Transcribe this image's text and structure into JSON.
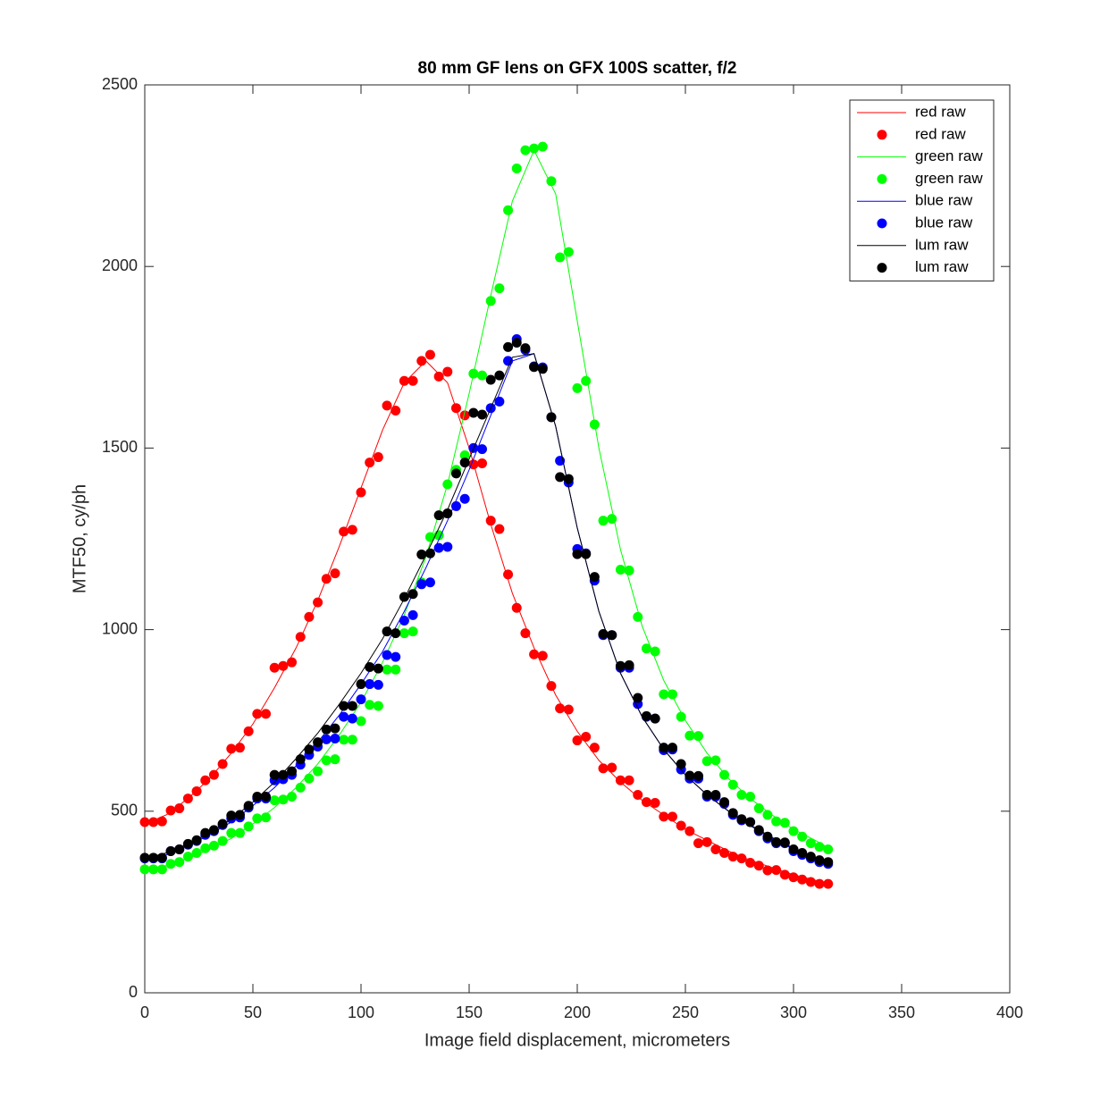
{
  "chart_data": {
    "type": "scatter",
    "title": "80 mm GF lens on GFX 100S scatter, f/2",
    "x_label": "Image field displacement, micrometers",
    "y_label": "MTF50, cy/ph",
    "xlim": [
      0,
      400
    ],
    "xticks": [
      0,
      50,
      100,
      150,
      200,
      250,
      300,
      350,
      400
    ],
    "ylim": [
      0,
      2500
    ],
    "yticks": [
      0,
      500,
      1000,
      1500,
      2000,
      2500
    ],
    "legend": "top-right",
    "series": [
      {
        "name": "red raw",
        "mode": "line",
        "color": "#ff0000",
        "x": [
          0,
          10,
          20,
          30,
          40,
          50,
          60,
          70,
          80,
          90,
          100,
          110,
          120,
          130,
          140,
          150,
          160,
          170,
          180,
          190,
          200,
          210,
          220,
          230,
          240,
          250,
          260,
          270,
          280,
          290,
          300,
          310,
          316
        ],
        "values": [
          465,
          490,
          535,
          590,
          660,
          740,
          840,
          950,
          1080,
          1230,
          1390,
          1550,
          1680,
          1740,
          1680,
          1500,
          1290,
          1100,
          950,
          820,
          720,
          640,
          580,
          530,
          490,
          450,
          420,
          390,
          365,
          345,
          325,
          310,
          302
        ]
      },
      {
        "name": "red raw",
        "mode": "markers",
        "color": "#ff0000",
        "x": [
          0,
          4,
          8,
          12,
          16,
          20,
          24,
          28,
          32,
          36,
          40,
          44,
          48,
          52,
          56,
          60,
          64,
          68,
          72,
          76,
          80,
          84,
          88,
          92,
          96,
          100,
          104,
          108,
          112,
          116,
          120,
          124,
          128,
          132,
          136,
          140,
          144,
          148,
          152,
          156,
          160,
          164,
          168,
          172,
          176,
          180,
          184,
          188,
          192,
          196,
          200,
          204,
          208,
          212,
          216,
          220,
          224,
          228,
          232,
          236,
          240,
          244,
          248,
          252,
          256,
          260,
          264,
          268,
          272,
          276,
          280,
          284,
          288,
          292,
          296,
          300,
          304,
          308,
          312,
          316
        ],
        "values": [
          470,
          470,
          472,
          502,
          508,
          535,
          555,
          585,
          600,
          630,
          672,
          675,
          720,
          768,
          768,
          895,
          900,
          910,
          980,
          1035,
          1075,
          1140,
          1155,
          1270,
          1275,
          1378,
          1460,
          1475,
          1617,
          1603,
          1685,
          1685,
          1740,
          1757,
          1697,
          1710,
          1610,
          1590,
          1455,
          1458,
          1300,
          1277,
          1152,
          1060,
          990,
          932,
          928,
          845,
          783,
          780,
          695,
          705,
          675,
          618,
          620,
          585,
          585,
          545,
          525,
          523,
          485,
          485,
          460,
          445,
          412,
          415,
          395,
          385,
          375,
          370,
          358,
          350,
          337,
          338,
          325,
          318,
          312,
          305,
          300,
          300
        ]
      },
      {
        "name": "green raw",
        "mode": "line",
        "color": "#00ff00",
        "x": [
          0,
          10,
          20,
          30,
          40,
          50,
          60,
          70,
          80,
          90,
          100,
          110,
          120,
          130,
          140,
          150,
          160,
          170,
          180,
          190,
          200,
          210,
          220,
          230,
          240,
          250,
          260,
          270,
          280,
          290,
          300,
          310,
          316
        ],
        "values": [
          340,
          350,
          370,
          395,
          425,
          465,
          510,
          565,
          630,
          710,
          800,
          910,
          1040,
          1200,
          1400,
          1650,
          1920,
          2180,
          2320,
          2200,
          1850,
          1500,
          1220,
          1010,
          860,
          750,
          660,
          590,
          535,
          490,
          450,
          420,
          400
        ]
      },
      {
        "name": "green raw",
        "mode": "markers",
        "color": "#00ff00",
        "x": [
          0,
          4,
          8,
          12,
          16,
          20,
          24,
          28,
          32,
          36,
          40,
          44,
          48,
          52,
          56,
          60,
          64,
          68,
          72,
          76,
          80,
          84,
          88,
          92,
          96,
          100,
          104,
          108,
          112,
          116,
          120,
          124,
          128,
          132,
          136,
          140,
          144,
          148,
          152,
          156,
          160,
          164,
          168,
          172,
          176,
          180,
          184,
          188,
          192,
          196,
          200,
          204,
          208,
          212,
          216,
          220,
          224,
          228,
          232,
          236,
          240,
          244,
          248,
          252,
          256,
          260,
          264,
          268,
          272,
          276,
          280,
          284,
          288,
          292,
          296,
          300,
          304,
          308,
          312,
          316
        ],
        "values": [
          340,
          340,
          340,
          355,
          360,
          375,
          385,
          398,
          405,
          418,
          440,
          440,
          458,
          480,
          483,
          530,
          532,
          540,
          565,
          590,
          610,
          640,
          643,
          697,
          697,
          748,
          793,
          790,
          890,
          890,
          990,
          995,
          1130,
          1255,
          1260,
          1400,
          1440,
          1480,
          1705,
          1700,
          1905,
          1940,
          2155,
          2270,
          2320,
          2325,
          2330,
          2235,
          2025,
          2040,
          1665,
          1685,
          1565,
          1300,
          1305,
          1165,
          1163,
          1035,
          948,
          940,
          822,
          822,
          760,
          708,
          707,
          638,
          640,
          600,
          573,
          545,
          540,
          508,
          490,
          472,
          468,
          445,
          430,
          412,
          402,
          395
        ]
      },
      {
        "name": "blue raw",
        "mode": "line",
        "color": "#0000ff",
        "x": [
          0,
          10,
          20,
          30,
          40,
          50,
          60,
          70,
          80,
          90,
          100,
          110,
          120,
          130,
          140,
          150,
          160,
          170,
          180,
          190,
          200,
          210,
          220,
          230,
          240,
          250,
          260,
          270,
          280,
          290,
          300,
          310,
          316
        ],
        "values": [
          368,
          380,
          405,
          435,
          470,
          515,
          565,
          625,
          690,
          765,
          850,
          940,
          1050,
          1170,
          1300,
          1440,
          1590,
          1740,
          1760,
          1560,
          1280,
          1050,
          880,
          760,
          670,
          600,
          545,
          500,
          460,
          425,
          395,
          370,
          358
        ]
      },
      {
        "name": "blue raw",
        "mode": "markers",
        "color": "#0000ff",
        "x": [
          0,
          4,
          8,
          12,
          16,
          20,
          24,
          28,
          32,
          36,
          40,
          44,
          48,
          52,
          56,
          60,
          64,
          68,
          72,
          76,
          80,
          84,
          88,
          92,
          96,
          100,
          104,
          108,
          112,
          116,
          120,
          124,
          128,
          132,
          136,
          140,
          144,
          148,
          152,
          156,
          160,
          164,
          168,
          172,
          176,
          180,
          184,
          188,
          192,
          196,
          200,
          204,
          208,
          212,
          216,
          220,
          224,
          228,
          232,
          236,
          240,
          244,
          248,
          252,
          256,
          260,
          264,
          268,
          272,
          276,
          280,
          284,
          288,
          292,
          296,
          300,
          304,
          308,
          312,
          316
        ],
        "values": [
          370,
          370,
          370,
          390,
          395,
          408,
          418,
          435,
          445,
          462,
          480,
          483,
          510,
          535,
          535,
          585,
          588,
          600,
          628,
          655,
          678,
          698,
          700,
          760,
          755,
          808,
          850,
          848,
          930,
          925,
          1025,
          1040,
          1125,
          1130,
          1225,
          1228,
          1340,
          1360,
          1500,
          1497,
          1610,
          1628,
          1740,
          1800,
          1770,
          1725,
          1722,
          1585,
          1465,
          1405,
          1222,
          1210,
          1135,
          985,
          985,
          895,
          895,
          795,
          760,
          755,
          668,
          670,
          615,
          590,
          590,
          540,
          540,
          520,
          490,
          475,
          470,
          445,
          425,
          412,
          412,
          390,
          380,
          370,
          360,
          355
        ]
      },
      {
        "name": "lum raw",
        "mode": "line",
        "color": "#000000",
        "x": [
          0,
          10,
          20,
          30,
          40,
          50,
          60,
          70,
          80,
          90,
          100,
          110,
          120,
          130,
          140,
          150,
          160,
          170,
          180,
          190,
          200,
          210,
          220,
          230,
          240,
          250,
          260,
          270,
          280,
          290,
          300,
          310,
          316
        ],
        "values": [
          370,
          385,
          410,
          440,
          478,
          525,
          580,
          645,
          715,
          795,
          880,
          975,
          1085,
          1205,
          1330,
          1470,
          1610,
          1750,
          1760,
          1560,
          1280,
          1050,
          880,
          760,
          670,
          600,
          545,
          500,
          462,
          428,
          398,
          373,
          360
        ]
      },
      {
        "name": "lum raw",
        "mode": "markers",
        "color": "#000000",
        "x": [
          0,
          4,
          8,
          12,
          16,
          20,
          24,
          28,
          32,
          36,
          40,
          44,
          48,
          52,
          56,
          60,
          64,
          68,
          72,
          76,
          80,
          84,
          88,
          92,
          96,
          100,
          104,
          108,
          112,
          116,
          120,
          124,
          128,
          132,
          136,
          140,
          144,
          148,
          152,
          156,
          160,
          164,
          168,
          172,
          176,
          180,
          184,
          188,
          192,
          196,
          200,
          204,
          208,
          212,
          216,
          220,
          224,
          228,
          232,
          236,
          240,
          244,
          248,
          252,
          256,
          260,
          264,
          268,
          272,
          276,
          280,
          284,
          288,
          292,
          296,
          300,
          304,
          308,
          312,
          316
        ],
        "values": [
          372,
          372,
          372,
          390,
          395,
          410,
          420,
          440,
          448,
          465,
          488,
          490,
          515,
          540,
          540,
          600,
          600,
          610,
          643,
          670,
          690,
          725,
          728,
          790,
          790,
          850,
          897,
          893,
          995,
          990,
          1090,
          1098,
          1207,
          1210,
          1315,
          1320,
          1430,
          1460,
          1597,
          1592,
          1688,
          1700,
          1778,
          1790,
          1775,
          1723,
          1718,
          1585,
          1420,
          1415,
          1208,
          1208,
          1145,
          988,
          985,
          900,
          902,
          812,
          762,
          755,
          675,
          675,
          630,
          598,
          597,
          545,
          545,
          525,
          495,
          478,
          470,
          448,
          430,
          415,
          414,
          395,
          385,
          375,
          365,
          360
        ]
      }
    ]
  }
}
